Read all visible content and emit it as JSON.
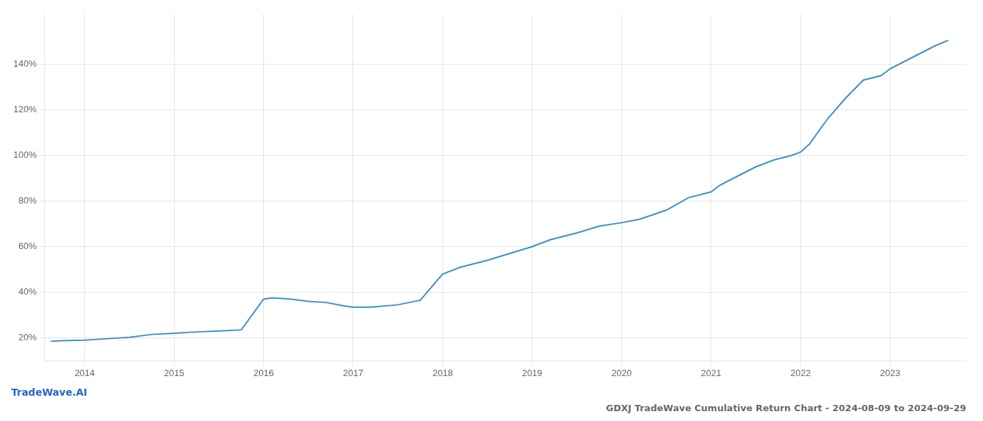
{
  "chart_data": {
    "type": "line",
    "title": "GDXJ TradeWave Cumulative Return Chart - 2024-08-09 to 2024-09-29",
    "annotations": [
      "TradeWave.AI"
    ],
    "x": [
      2013.62,
      2013.75,
      2014.0,
      2014.2,
      2014.5,
      2014.75,
      2015.0,
      2015.2,
      2015.5,
      2015.75,
      2016.0,
      2016.1,
      2016.3,
      2016.5,
      2016.7,
      2016.9,
      2017.0,
      2017.2,
      2017.5,
      2017.75,
      2018.0,
      2018.2,
      2018.5,
      2018.75,
      2019.0,
      2019.2,
      2019.5,
      2019.75,
      2020.0,
      2020.2,
      2020.5,
      2020.75,
      2021.0,
      2021.1,
      2021.3,
      2021.5,
      2021.7,
      2021.9,
      2022.0,
      2022.1,
      2022.3,
      2022.5,
      2022.7,
      2022.9,
      2023.0,
      2023.2,
      2023.5,
      2023.65
    ],
    "values": [
      18.5,
      18.8,
      19.0,
      19.5,
      20.2,
      21.5,
      22.0,
      22.5,
      23.0,
      23.5,
      37.0,
      37.5,
      37.0,
      36.0,
      35.5,
      34.0,
      33.5,
      33.5,
      34.5,
      36.5,
      48.0,
      51.0,
      54.0,
      57.0,
      60.0,
      63.0,
      66.0,
      69.0,
      70.5,
      72.0,
      76.0,
      81.5,
      84.0,
      87.0,
      91.0,
      95.0,
      98.0,
      100.0,
      101.5,
      105.0,
      116.0,
      125.0,
      133.0,
      135.0,
      138.0,
      142.0,
      148.0,
      150.5
    ],
    "color": "#3a8fc8",
    "xlim": [
      2013.55,
      2023.85
    ],
    "ylim": [
      10,
      162
    ],
    "xticks": [
      2014,
      2015,
      2016,
      2017,
      2018,
      2019,
      2020,
      2021,
      2022,
      2023
    ],
    "yticks": [
      {
        "value": 20,
        "label": "20%"
      },
      {
        "value": 40,
        "label": "40%"
      },
      {
        "value": 60,
        "label": "60%"
      },
      {
        "value": 80,
        "label": "80%"
      },
      {
        "value": 100,
        "label": "100%"
      },
      {
        "value": 120,
        "label": "120%"
      },
      {
        "value": 140,
        "label": "140%"
      }
    ],
    "grid": true
  }
}
